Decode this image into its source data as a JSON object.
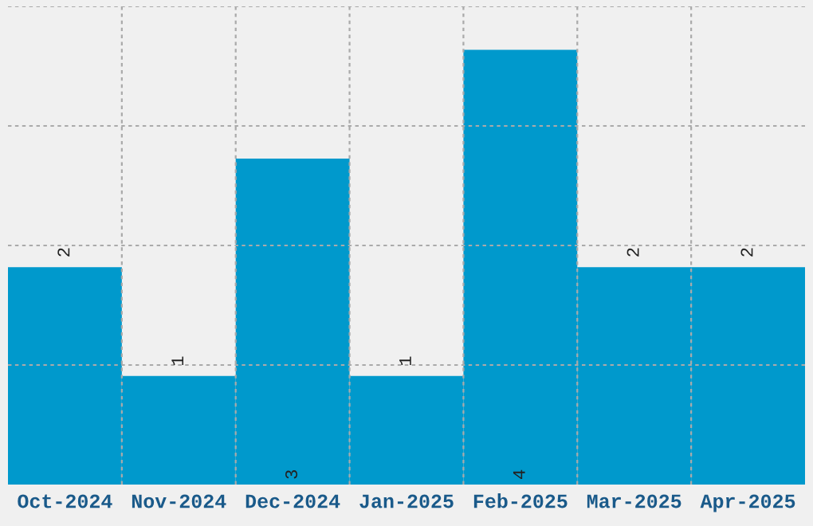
{
  "chart_data": {
    "type": "bar",
    "categories": [
      "Oct-2024",
      "Nov-2024",
      "Dec-2024",
      "Jan-2025",
      "Feb-2025",
      "Mar-2025",
      "Apr-2025"
    ],
    "values": [
      2,
      1,
      3,
      1,
      4,
      2,
      2
    ],
    "color": "#0099cc",
    "ylim": [
      0,
      4.4
    ],
    "yticks": [
      {
        "value": 1.1,
        "label": null
      },
      {
        "value": 2.2,
        "label": null
      },
      {
        "value": 3.3,
        "label": null
      },
      {
        "value": 4.4,
        "label": null
      }
    ],
    "tick_labels": "x",
    "grid": true,
    "data_labels": true
  }
}
